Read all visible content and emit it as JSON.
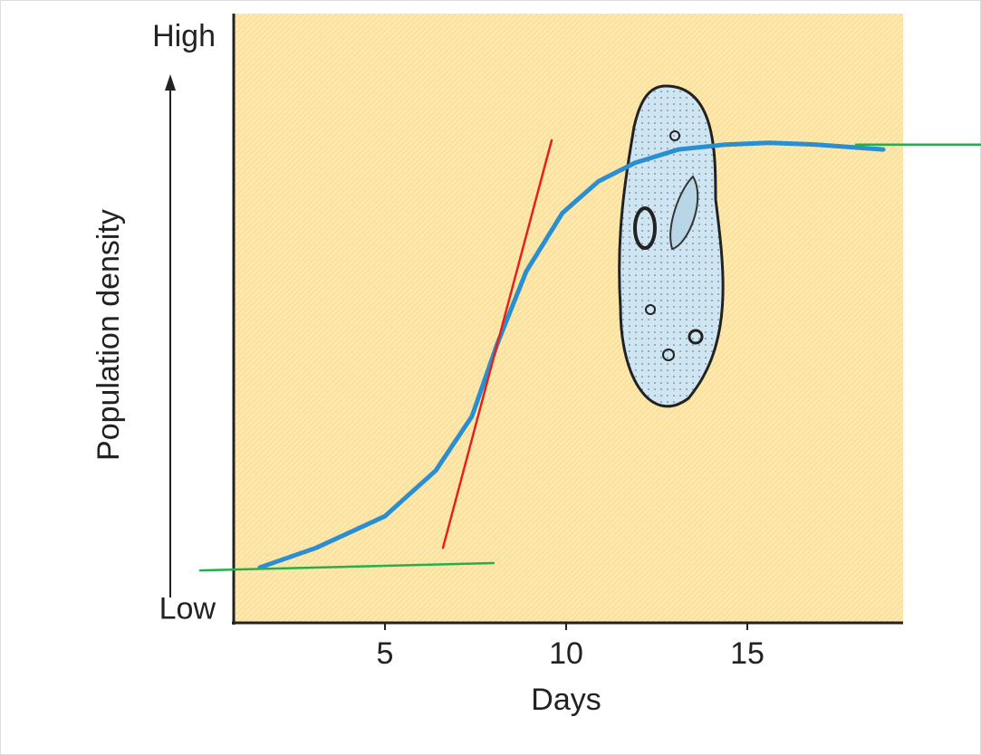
{
  "chart_data": {
    "type": "line",
    "x_label": "Days",
    "y_label": "Population density",
    "xlim": [
      0.825,
      19.3
    ],
    "xticks": [
      5,
      10,
      15
    ],
    "ylim": [
      0,
      100
    ],
    "yticks": [
      {
        "value": 2,
        "label": "Low"
      },
      {
        "value": 96,
        "label": "High"
      }
    ],
    "series": [
      {
        "color": "#2a8fd0",
        "x": [
          1.55,
          3.1,
          5,
          6.4,
          7.4,
          8.1,
          8.9,
          9.9,
          10.9,
          11.9,
          13.1,
          14.4,
          15.6,
          16.9,
          18.75
        ],
        "values": [
          9.1,
          12.3,
          17.5,
          25,
          33.9,
          45.8,
          57.7,
          67.3,
          72.5,
          75.5,
          77.7,
          78.5,
          78.8,
          78.5,
          77.7
        ]
      },
      {
        "color": "#e8201a",
        "x": [
          6.6,
          9.6
        ],
        "values": [
          12.3,
          79.2
        ]
      },
      {
        "color": "#22b04a",
        "x": [
          -0.1,
          8.0
        ],
        "values": [
          8.6,
          9.8
        ]
      },
      {
        "color": "#22b04a",
        "x": [
          18.0,
          21.45
        ],
        "values": [
          78.5,
          78.5
        ]
      }
    ]
  }
}
